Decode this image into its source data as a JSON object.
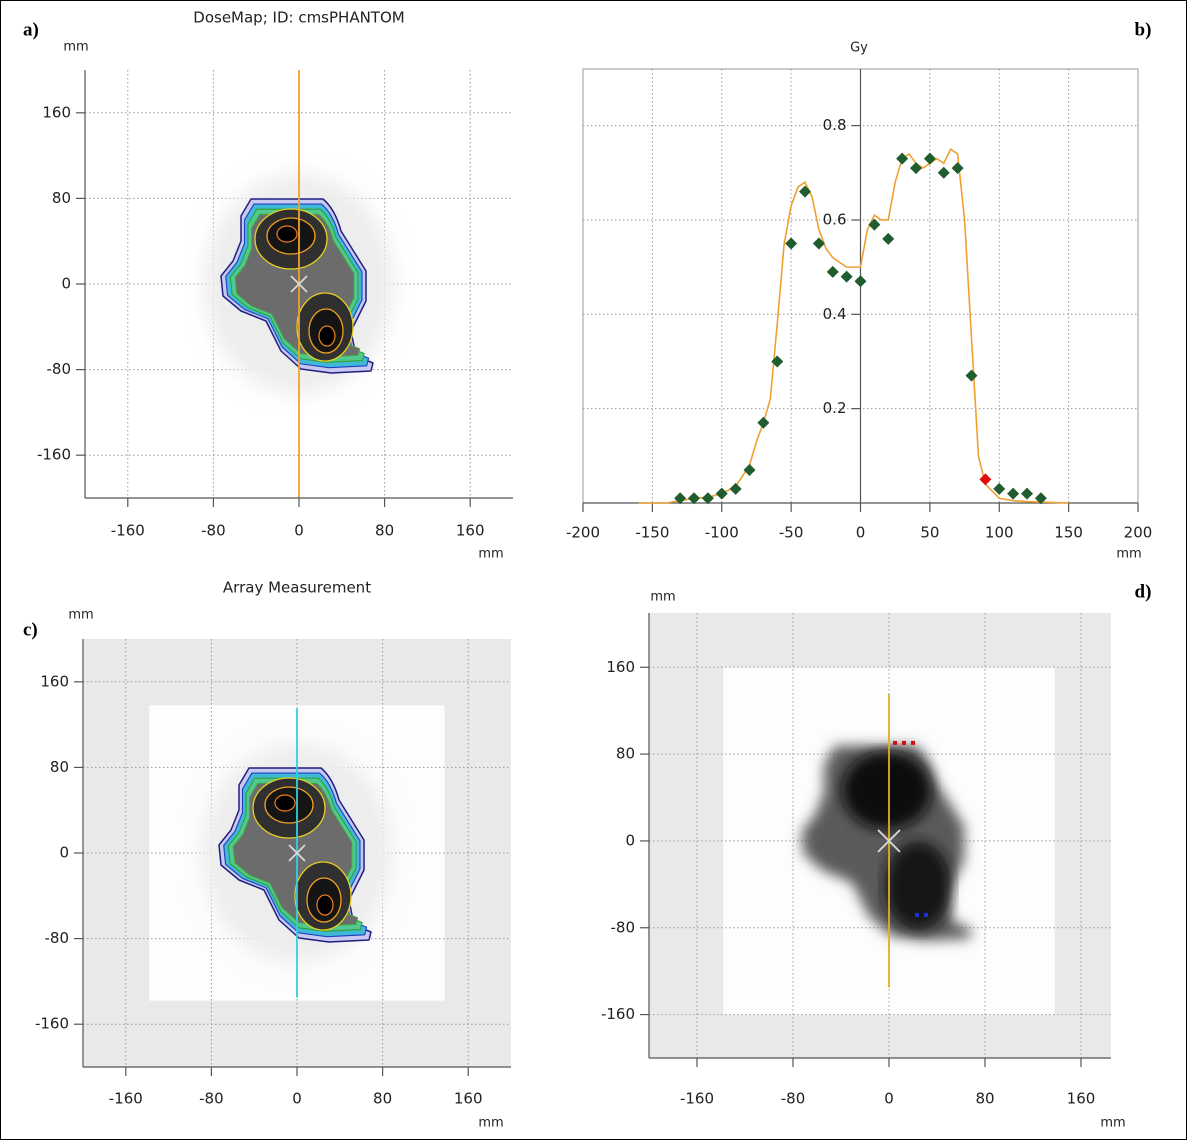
{
  "chart_data": [
    {
      "type": "map",
      "panel_label": "a)",
      "title": "DoseMap; ID: cmsPHANTOM",
      "x_label": "mm",
      "y_label": "mm",
      "xlim": [
        -200,
        200
      ],
      "ylim": [
        -200,
        200
      ],
      "xticks": [
        -160,
        -80,
        0,
        80,
        160
      ],
      "yticks": [
        -160,
        -80,
        0,
        80,
        160
      ],
      "grid": true,
      "line_color": "#f0a030"
    },
    {
      "type": "profile",
      "panel_label": "b)",
      "y_label": "Gy",
      "x_label": "mm",
      "xlim": [
        -200,
        200
      ],
      "ylim": [
        0,
        0.92
      ],
      "xticks": [
        -200,
        -150,
        -100,
        -50,
        0,
        50,
        100,
        150,
        200
      ],
      "yticks": [
        0.2,
        0.4,
        0.6,
        0.8
      ],
      "grid": true,
      "series": [
        {
          "type": "line",
          "color": "#f0a030",
          "x": [
            -160,
            -150,
            -140,
            -130,
            -120,
            -110,
            -100,
            -90,
            -80,
            -75,
            -70,
            -65,
            -60,
            -55,
            -50,
            -45,
            -40,
            -35,
            -30,
            -25,
            -20,
            -10,
            0,
            5,
            10,
            15,
            20,
            25,
            30,
            35,
            40,
            45,
            50,
            55,
            60,
            65,
            70,
            75,
            80,
            85,
            90,
            100,
            110,
            120,
            130,
            150
          ],
          "values": [
            0,
            0,
            0,
            0.005,
            0.01,
            0.012,
            0.02,
            0.035,
            0.08,
            0.13,
            0.17,
            0.22,
            0.38,
            0.55,
            0.63,
            0.67,
            0.68,
            0.65,
            0.58,
            0.54,
            0.52,
            0.5,
            0.5,
            0.58,
            0.61,
            0.6,
            0.6,
            0.68,
            0.73,
            0.74,
            0.72,
            0.71,
            0.72,
            0.73,
            0.72,
            0.75,
            0.74,
            0.6,
            0.35,
            0.1,
            0.04,
            0.01,
            0.005,
            0.003,
            0.002,
            0
          ]
        },
        {
          "type": "scatter",
          "color": "#1f5c2e",
          "x": [
            -130,
            -120,
            -110,
            -100,
            -90,
            -80,
            -70,
            -60,
            -50,
            -40,
            -30,
            -20,
            -10,
            0,
            10,
            20,
            30,
            40,
            50,
            60,
            70,
            80,
            100,
            110,
            120,
            130
          ],
          "values": [
            0.01,
            0.01,
            0.01,
            0.02,
            0.03,
            0.07,
            0.17,
            0.3,
            0.55,
            0.66,
            0.55,
            0.49,
            0.48,
            0.47,
            0.59,
            0.56,
            0.73,
            0.71,
            0.73,
            0.7,
            0.71,
            0.27,
            0.03,
            0.02,
            0.02,
            0.01
          ]
        },
        {
          "type": "scatter",
          "color": "#e01010",
          "x": [
            90
          ],
          "values": [
            0.05
          ]
        }
      ]
    },
    {
      "type": "map",
      "panel_label": "c)",
      "title": "Array Measurement",
      "x_label": "mm",
      "y_label": "mm",
      "xlim": [
        -200,
        200
      ],
      "ylim": [
        -200,
        200
      ],
      "xticks": [
        -160,
        -80,
        0,
        80,
        160
      ],
      "yticks": [
        -160,
        -80,
        0,
        80,
        160
      ],
      "grid": true,
      "line_color": "#30d0e0"
    },
    {
      "type": "map",
      "panel_label": "d)",
      "x_label": "mm",
      "y_label": "mm",
      "xlim": [
        -200,
        185
      ],
      "ylim": [
        -200,
        210
      ],
      "xticks": [
        -160,
        -80,
        0,
        80,
        160
      ],
      "yticks": [
        -160,
        -80,
        0,
        80,
        160
      ],
      "grid": true,
      "line_color": "#e0b020"
    }
  ]
}
